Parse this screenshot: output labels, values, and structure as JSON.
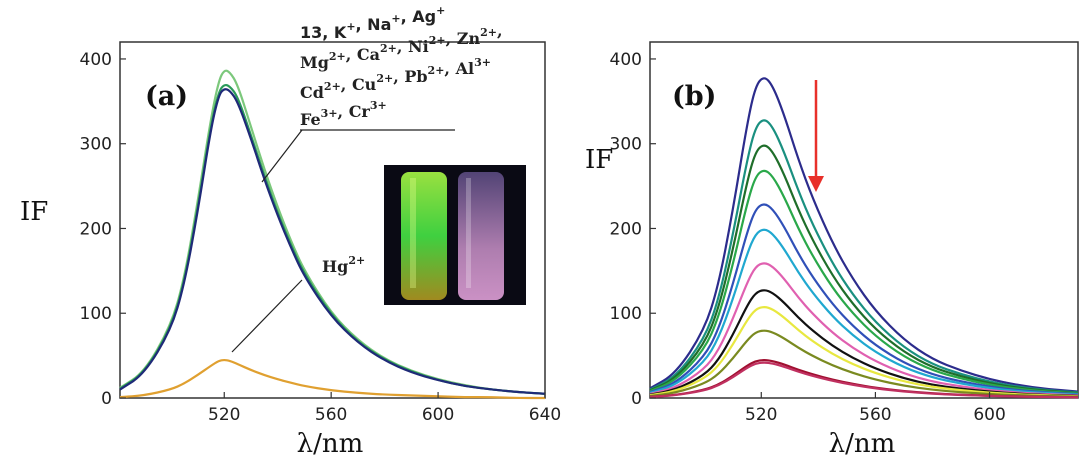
{
  "chart_data": [
    {
      "type": "line",
      "panel_label": "(a)",
      "xlabel": "λ/nm",
      "ylabel": "IF",
      "xlim": [
        481,
        640
      ],
      "ylim": [
        0,
        420
      ],
      "xticks": [
        520,
        560,
        600,
        640
      ],
      "yticks": [
        0,
        100,
        200,
        300,
        400
      ],
      "annotation_top": {
        "line1_prefix": "13, K",
        "line1_s1": "+",
        "line1_mid": ", Na",
        "line1_s2": "+",
        "line1_mid2": ", Ag",
        "line1_s3": "+",
        "line2": [
          {
            "t": "Mg",
            "s": "2+"
          },
          {
            "t": ", Ca",
            "s": "2+"
          },
          {
            "t": ", Ni",
            "s": "2+"
          },
          {
            "t": ", Zn",
            "s": "2+"
          },
          {
            "t": ",",
            "s": ""
          }
        ],
        "line3": [
          {
            "t": "Cd",
            "s": "2+"
          },
          {
            "t": ", Cu",
            "s": "2+"
          },
          {
            "t": ", Pb",
            "s": "2+"
          },
          {
            "t": ", Al",
            "s": "3+"
          }
        ],
        "line4": [
          {
            "t": "Fe",
            "s": "3+"
          },
          {
            "t": ", Cr",
            "s": "3+"
          }
        ]
      },
      "annotation_hg": {
        "t": "Hg",
        "s": "2+"
      },
      "series": [
        {
          "color": "#7cc87c",
          "x": [
            481,
            490,
            500,
            505,
            510,
            515,
            518,
            520,
            522,
            525,
            530,
            535,
            540,
            545,
            550,
            560,
            570,
            580,
            590,
            600,
            610,
            620,
            630,
            640
          ],
          "y": [
            12,
            30,
            85,
            140,
            230,
            330,
            375,
            387,
            385,
            370,
            320,
            270,
            225,
            185,
            150,
            100,
            68,
            46,
            32,
            22,
            15,
            10,
            7,
            5
          ]
        },
        {
          "color": "#2a9a5a",
          "x": [
            481,
            490,
            500,
            505,
            510,
            515,
            518,
            520,
            522,
            525,
            530,
            535,
            540,
            545,
            550,
            560,
            570,
            580,
            590,
            600,
            610,
            620,
            630,
            640
          ],
          "y": [
            11,
            29,
            82,
            136,
            222,
            322,
            362,
            370,
            368,
            356,
            310,
            262,
            218,
            180,
            146,
            98,
            66,
            45,
            31,
            21,
            14,
            10,
            7,
            5
          ]
        },
        {
          "color": "#1f2a78",
          "x": [
            481,
            490,
            500,
            505,
            510,
            515,
            518,
            520,
            522,
            525,
            530,
            535,
            540,
            545,
            550,
            560,
            570,
            580,
            590,
            600,
            610,
            620,
            630,
            640
          ],
          "y": [
            10,
            28,
            80,
            133,
            218,
            318,
            358,
            365,
            363,
            350,
            306,
            258,
            215,
            177,
            143,
            96,
            65,
            44,
            30,
            21,
            14,
            10,
            7,
            5
          ]
        },
        {
          "color": "#e0a030",
          "x": [
            481,
            490,
            500,
            505,
            510,
            515,
            518,
            520,
            522,
            525,
            530,
            535,
            540,
            545,
            550,
            560,
            570,
            580,
            590,
            600,
            610,
            620,
            630,
            640
          ],
          "y": [
            1,
            3,
            10,
            17,
            27,
            38,
            44,
            45,
            44,
            40,
            33,
            27,
            22,
            18,
            14,
            9,
            6,
            4,
            3,
            2,
            1,
            1,
            0,
            0
          ]
        }
      ]
    },
    {
      "type": "line",
      "panel_label": "(b)",
      "xlabel": "λ/nm",
      "ylabel": "IF",
      "xlim": [
        481,
        631
      ],
      "ylim": [
        0,
        420
      ],
      "xticks": [
        520,
        560,
        600
      ],
      "yticks": [
        0,
        100,
        200,
        300,
        400
      ],
      "arrow_color": "#e8302a",
      "peaks": [
        380,
        330,
        300,
        270,
        230,
        200,
        160,
        128,
        108,
        80,
        45,
        42
      ],
      "colors": [
        "#2c2c8c",
        "#1a9080",
        "#1f6e2a",
        "#2aa84a",
        "#3050b8",
        "#20a8d0",
        "#e060b0",
        "#111111",
        "#e8e840",
        "#7a8a20",
        "#a01030",
        "#c03060"
      ]
    }
  ]
}
